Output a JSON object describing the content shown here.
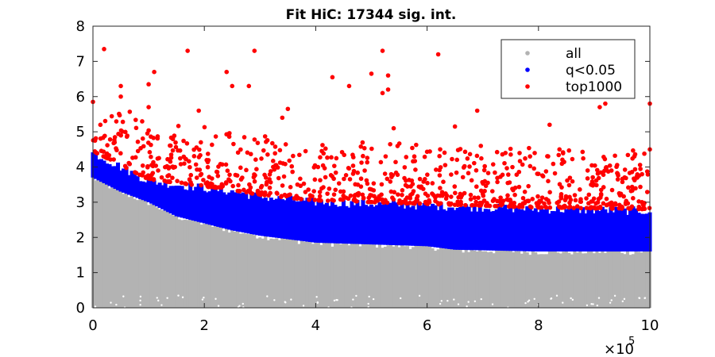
{
  "chart_data": {
    "type": "scatter",
    "title": "Fit HiC: 17344 sig. int.",
    "xlabel": "",
    "ylabel": "",
    "xlim": [
      0,
      1000000
    ],
    "ylim": [
      0,
      8
    ],
    "x_ticks": [
      0,
      200000,
      400000,
      600000,
      800000,
      1000000
    ],
    "x_tick_labels": [
      "0",
      "2",
      "4",
      "6",
      "8",
      "10"
    ],
    "x_exponent": "×10",
    "x_exponent_power": "5",
    "y_ticks": [
      0,
      1,
      2,
      3,
      4,
      5,
      6,
      7,
      8
    ],
    "y_tick_labels": [
      "0",
      "1",
      "2",
      "3",
      "4",
      "5",
      "6",
      "7",
      "8"
    ],
    "grid": false,
    "legend_position": "top-right",
    "colors": {
      "all": "#b3b3b3",
      "q_lt_0_05": "#0000ff",
      "top1000": "#ff0000"
    },
    "series": [
      {
        "name": "all",
        "color": "#b3b3b3",
        "description_profile": "dense columns from ~0 up to a decreasing upper envelope",
        "upper_envelope": [
          [
            0,
            3.7
          ],
          [
            50000,
            3.3
          ],
          [
            100000,
            3.0
          ],
          [
            150000,
            2.6
          ],
          [
            200000,
            2.4
          ],
          [
            250000,
            2.2
          ],
          [
            300000,
            2.05
          ],
          [
            350000,
            1.95
          ],
          [
            400000,
            1.85
          ],
          [
            500000,
            1.8
          ],
          [
            600000,
            1.75
          ],
          [
            650000,
            1.65
          ],
          [
            800000,
            1.6
          ],
          [
            1000000,
            1.6
          ]
        ]
      },
      {
        "name": "q<0.05",
        "color": "#0000ff",
        "lower_envelope": [
          [
            0,
            3.7
          ],
          [
            50000,
            3.3
          ],
          [
            100000,
            3.0
          ],
          [
            150000,
            2.6
          ],
          [
            200000,
            2.4
          ],
          [
            250000,
            2.2
          ],
          [
            300000,
            2.05
          ],
          [
            350000,
            1.95
          ],
          [
            400000,
            1.85
          ],
          [
            500000,
            1.8
          ],
          [
            600000,
            1.75
          ],
          [
            650000,
            1.65
          ],
          [
            800000,
            1.6
          ],
          [
            1000000,
            1.6
          ]
        ],
        "upper_envelope": [
          [
            0,
            4.4
          ],
          [
            50000,
            4.0
          ],
          [
            100000,
            3.6
          ],
          [
            150000,
            3.5
          ],
          [
            200000,
            3.4
          ],
          [
            250000,
            3.3
          ],
          [
            300000,
            3.15
          ],
          [
            400000,
            3.0
          ],
          [
            500000,
            2.95
          ],
          [
            600000,
            2.9
          ],
          [
            700000,
            2.85
          ],
          [
            800000,
            2.8
          ],
          [
            1000000,
            2.75
          ]
        ]
      },
      {
        "name": "top1000",
        "color": "#ff0000",
        "notable_points": [
          [
            0,
            5.85
          ],
          [
            20000,
            7.35
          ],
          [
            50000,
            6.3
          ],
          [
            50000,
            6.0
          ],
          [
            100000,
            6.35
          ],
          [
            100000,
            5.7
          ],
          [
            110000,
            6.7
          ],
          [
            170000,
            7.3
          ],
          [
            190000,
            5.6
          ],
          [
            240000,
            6.7
          ],
          [
            250000,
            6.3
          ],
          [
            280000,
            6.3
          ],
          [
            290000,
            7.3
          ],
          [
            340000,
            5.4
          ],
          [
            350000,
            5.65
          ],
          [
            430000,
            6.55
          ],
          [
            460000,
            6.3
          ],
          [
            500000,
            6.65
          ],
          [
            520000,
            7.3
          ],
          [
            520000,
            6.1
          ],
          [
            530000,
            6.6
          ],
          [
            530000,
            6.2
          ],
          [
            540000,
            5.1
          ],
          [
            620000,
            7.2
          ],
          [
            690000,
            5.6
          ],
          [
            910000,
            5.7
          ],
          [
            920000,
            5.8
          ],
          [
            1000000,
            5.8
          ],
          [
            1000000,
            4.5
          ],
          [
            650000,
            5.15
          ],
          [
            820000,
            5.2
          ]
        ]
      }
    ]
  },
  "legend": {
    "items": [
      {
        "label": "all",
        "color": "#b3b3b3"
      },
      {
        "label": "q<0.05",
        "color": "#0000ff"
      },
      {
        "label": "top1000",
        "color": "#ff0000"
      }
    ]
  }
}
